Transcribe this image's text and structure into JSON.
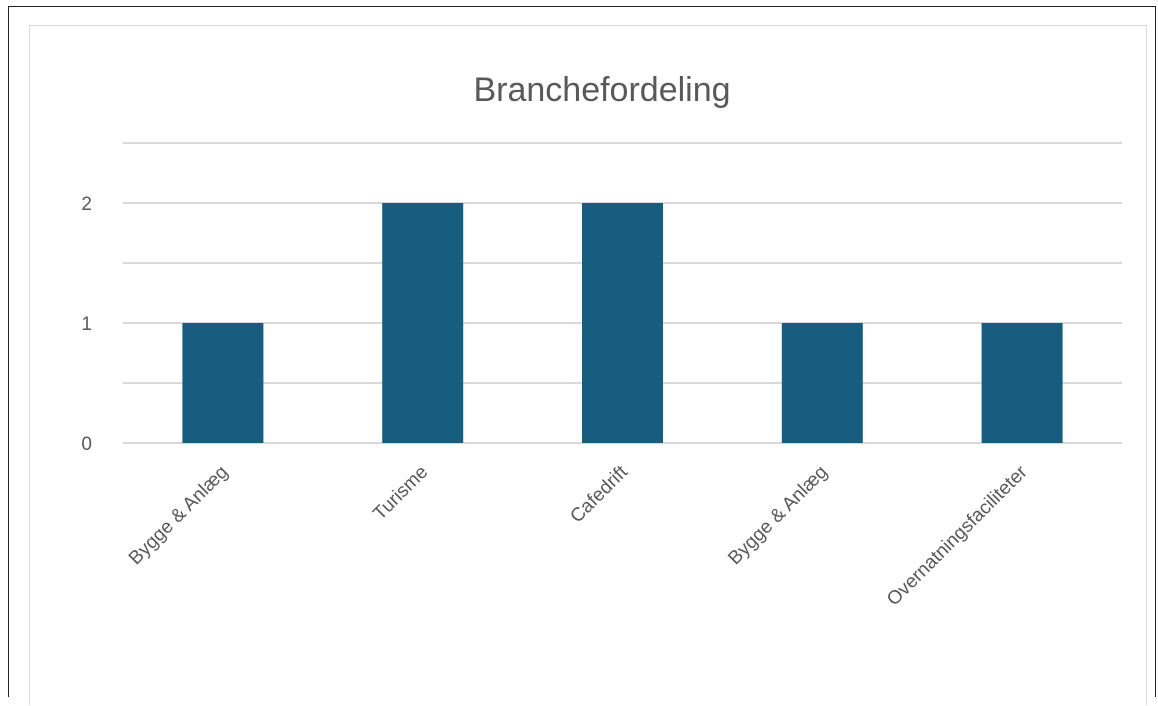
{
  "chart_data": {
    "type": "bar",
    "title": "Branchefordeling",
    "categories": [
      "Bygge & Anlæg",
      "Turisme",
      "Cafedrift",
      "Bygge & Anlæg",
      "Overnatningsfaciliteter"
    ],
    "values": [
      1,
      2,
      2,
      1,
      1
    ],
    "ylim": [
      0,
      2.5
    ],
    "yticks": [
      "0",
      "1",
      "2"
    ],
    "grid": true,
    "bar_color": "#165d80",
    "gridline_color": "#d9d9d9"
  }
}
